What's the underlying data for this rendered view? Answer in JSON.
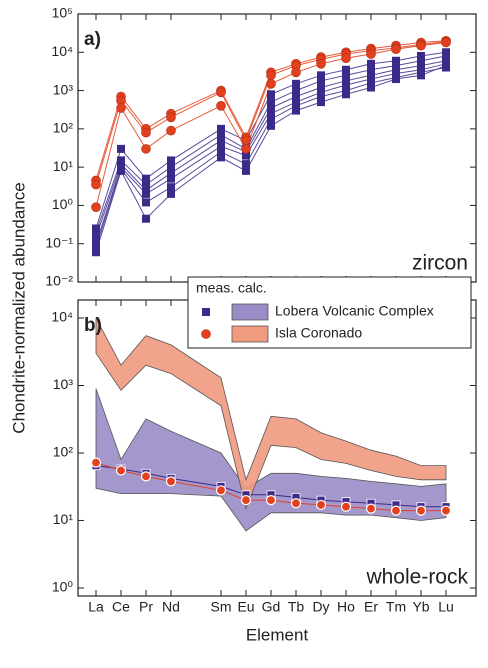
{
  "y_label": "Chondrite-normalized abundance",
  "x_label": "Element",
  "legend": {
    "title": "meas. calc.",
    "corner": "upper right"
  },
  "chart_data": [
    {
      "type": "line",
      "label": "a)",
      "annotation": "zircon",
      "log_y": true,
      "ylim": [
        0.01,
        100000
      ],
      "yticks": [
        {
          "value": 0.01,
          "label": "10⁻²"
        },
        {
          "value": 0.1,
          "label": "10⁻¹"
        },
        {
          "value": 1,
          "label": "10⁰"
        },
        {
          "value": 10,
          "label": "10¹"
        },
        {
          "value": 100,
          "label": "10²"
        },
        {
          "value": 1000,
          "label": "10³"
        },
        {
          "value": 10000,
          "label": "10⁴"
        },
        {
          "value": 100000,
          "label": "10⁵"
        }
      ],
      "series": [
        {
          "color": "#3b2a8a",
          "line_color": "#5a4a9e",
          "marker": "square",
          "values": [
            0.25,
            30,
            5,
            15,
            100,
            50,
            800,
            1500,
            2500,
            3500,
            5000,
            6000,
            8000,
            10000
          ]
        },
        {
          "color": "#3b2a8a",
          "line_color": "#5a4a9e",
          "marker": "square",
          "values": [
            0.2,
            15,
            3.5,
            10,
            70,
            30,
            500,
            1000,
            1800,
            2500,
            3500,
            4500,
            6000,
            8000
          ]
        },
        {
          "color": "#3b2a8a",
          "line_color": "#5a4a9e",
          "marker": "square",
          "values": [
            0.15,
            12,
            2.5,
            7,
            50,
            25,
            350,
            700,
            1200,
            1800,
            2500,
            3500,
            4500,
            6000
          ]
        },
        {
          "color": "#3b2a8a",
          "line_color": "#5a4a9e",
          "marker": "square",
          "values": [
            0.1,
            10,
            2,
            5,
            35,
            20,
            250,
            500,
            900,
            1400,
            2000,
            2800,
            3500,
            5000
          ]
        },
        {
          "color": "#3b2a8a",
          "line_color": "#5a4a9e",
          "marker": "square",
          "values": [
            0.08,
            9,
            1.2,
            3,
            25,
            12,
            180,
            400,
            700,
            1000,
            1600,
            2200,
            3000,
            4000
          ]
        },
        {
          "color": "#3b2a8a",
          "line_color": "#5a4a9e",
          "marker": "square",
          "values": [
            0.06,
            8,
            0.45,
            2,
            18,
            8,
            120,
            300,
            500,
            800,
            1200,
            2000,
            2500,
            4500
          ]
        },
        {
          "color": "#e2401f",
          "line_color": "#e85a3a",
          "marker": "circle",
          "values": [
            4.5,
            700,
            100,
            250,
            1000,
            60,
            3000,
            5000,
            7500,
            10000,
            12500,
            15000,
            18000,
            20000
          ]
        },
        {
          "color": "#e2401f",
          "line_color": "#e85a3a",
          "marker": "circle",
          "values": [
            3.5,
            550,
            80,
            200,
            900,
            50,
            2500,
            4500,
            6500,
            9000,
            11000,
            13000,
            16000,
            19000
          ]
        },
        {
          "color": "#e2401f",
          "line_color": "#e85a3a",
          "marker": "circle",
          "values": [
            0.9,
            350,
            30,
            90,
            400,
            30,
            1500,
            3000,
            5000,
            7000,
            9000,
            12000,
            15000,
            18000
          ]
        }
      ]
    },
    {
      "type": "band",
      "label": "b)",
      "annotation": "whole-rock",
      "log_y": true,
      "x": [
        57,
        58,
        59,
        60,
        62,
        63,
        64,
        65,
        66,
        67,
        68,
        69,
        70,
        71
      ],
      "xlim": [
        56.28,
        72.2
      ],
      "xticks": [
        {
          "value": 57,
          "label": "La"
        },
        {
          "value": 58,
          "label": "Ce"
        },
        {
          "value": 59,
          "label": "Pr"
        },
        {
          "value": 60,
          "label": "Nd"
        },
        {
          "value": 62,
          "label": "Sm"
        },
        {
          "value": 63,
          "label": "Eu"
        },
        {
          "value": 64,
          "label": "Gd"
        },
        {
          "value": 65,
          "label": "Tb"
        },
        {
          "value": 66,
          "label": "Dy"
        },
        {
          "value": 67,
          "label": "Ho"
        },
        {
          "value": 68,
          "label": "Er"
        },
        {
          "value": 69,
          "label": "Tm"
        },
        {
          "value": 70,
          "label": "Yb"
        },
        {
          "value": 71,
          "label": "Lu"
        }
      ],
      "ylim": [
        0.76,
        18500
      ],
      "yticks": [
        {
          "value": 1,
          "label": "10⁰"
        },
        {
          "value": 10,
          "label": "10¹"
        },
        {
          "value": 100,
          "label": "10²"
        },
        {
          "value": 1000,
          "label": "10³"
        },
        {
          "value": 10000,
          "label": "10⁴"
        }
      ],
      "series": [
        {
          "name": "Lobera Volcanic Complex",
          "color": "#9a8cc6",
          "marker": "square",
          "upper": [
            900,
            80,
            320,
            210,
            100,
            30,
            50,
            50,
            45,
            42,
            38,
            35,
            32,
            35
          ],
          "lower": [
            30,
            25,
            25,
            25,
            23,
            7,
            13,
            13,
            13,
            12,
            12,
            11,
            10,
            11
          ]
        },
        {
          "name": "Isla Coronado",
          "color": "#f09a7e",
          "marker": "circle",
          "upper": [
            10000,
            2000,
            5500,
            4000,
            1300,
            40,
            350,
            320,
            200,
            150,
            110,
            90,
            65,
            65
          ],
          "lower": [
            3000,
            850,
            2000,
            1500,
            500,
            15,
            130,
            120,
            80,
            70,
            55,
            45,
            40,
            40
          ]
        },
        {
          "color": "#3b2a8a",
          "marker": "square",
          "values": [
            65,
            58,
            50,
            42,
            32,
            24,
            24,
            22,
            20,
            19,
            18,
            17,
            16,
            16
          ]
        },
        {
          "color": "#e2401f",
          "marker": "circle",
          "values": [
            72,
            55,
            45,
            38,
            28,
            20,
            20,
            18,
            17,
            16,
            15,
            14,
            14,
            14
          ]
        }
      ]
    }
  ]
}
